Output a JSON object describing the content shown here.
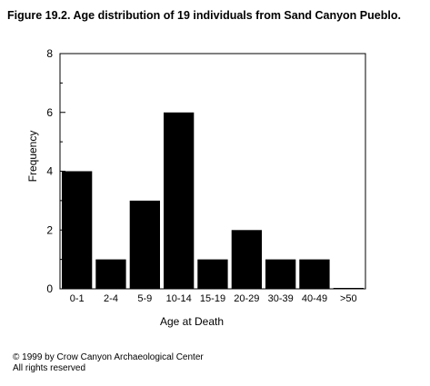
{
  "figure": {
    "title": "Figure 19.2.  Age distribution of 19 individuals from Sand Canyon Pueblo."
  },
  "chart_data": {
    "type": "bar",
    "categories": [
      "0-1",
      "2-4",
      "5-9",
      "10-14",
      "15-19",
      "20-29",
      "30-39",
      "40-49",
      ">50"
    ],
    "values": [
      4,
      1,
      3,
      6,
      1,
      2,
      1,
      1,
      0
    ],
    "xlabel": "Age at Death",
    "ylabel": "Frequency",
    "ylim": [
      0,
      8
    ],
    "yticks": [
      0,
      2,
      4,
      6,
      8
    ],
    "grid": false,
    "bar_color": "#000000"
  },
  "footer": {
    "copyright": "© 1999 by Crow Canyon Archaeological Center",
    "rights": "All rights reserved"
  }
}
